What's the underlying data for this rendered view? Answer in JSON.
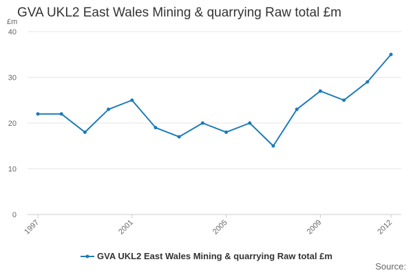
{
  "colors": {
    "series": "#1a7bb9",
    "grid": "#e6e6e6",
    "axis": "#cccccc",
    "text": "#333333",
    "tick_text": "#666666"
  },
  "chart_data": {
    "type": "line",
    "title": "GVA UKL2 East Wales Mining & quarrying Raw total £m",
    "ylabel": "£m",
    "xlabel": "",
    "ylim": [
      0,
      40
    ],
    "yticks": [
      0,
      10,
      20,
      30,
      40
    ],
    "xticks": [
      1997,
      2001,
      2005,
      2009,
      2012
    ],
    "grid": "horizontal",
    "legend_position": "bottom",
    "x": [
      1997,
      1998,
      1999,
      2000,
      2001,
      2002,
      2003,
      2004,
      2005,
      2006,
      2007,
      2008,
      2009,
      2010,
      2011,
      2012
    ],
    "series": [
      {
        "name": "GVA UKL2 East Wales Mining & quarrying Raw total £m",
        "values": [
          22,
          22,
          18,
          23,
          25,
          19,
          17,
          20,
          18,
          20,
          15,
          23,
          27,
          25,
          29,
          35
        ]
      }
    ]
  },
  "source_label": "Source:"
}
